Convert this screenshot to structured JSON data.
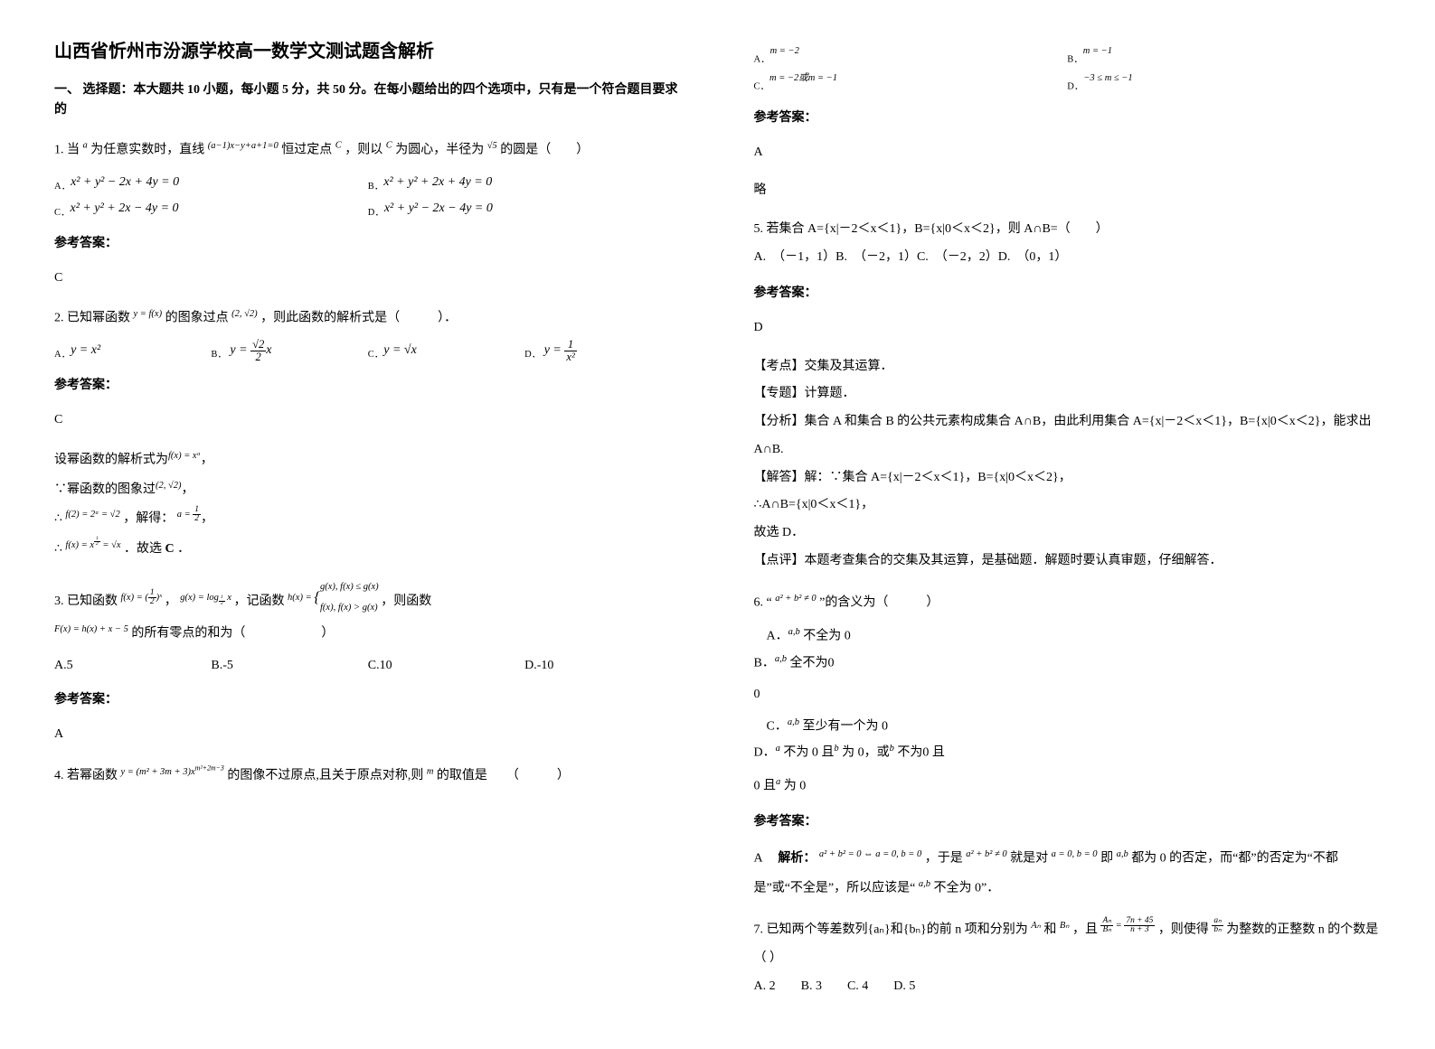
{
  "title": "山西省忻州市汾源学校高一数学文测试题含解析",
  "section1_intro": "一、 选择题：本大题共 10 小题，每小题 5 分，共 50 分。在每小题给出的四个选项中，只有是一个符合题目要求的",
  "q1": {
    "stem_a": "1. 当",
    "stem_b": "为任意实数时，直线",
    "stem_c": "恒过定点",
    "stem_d": "，则以",
    "stem_e": "为圆心，半径为",
    "stem_f": "的圆是（　　）",
    "var_a": "a",
    "line_expr": "(a−1)x−y+a+1=0",
    "point_c": "C",
    "radius": "√5",
    "optA": "x² + y² − 2x + 4y = 0",
    "optB": "x² + y² + 2x + 4y = 0",
    "optC": "x² + y² + 2x − 4y = 0",
    "optD": "x² + y² − 2x − 4y = 0",
    "labelA": "A．",
    "labelB": "B．",
    "labelC": "C．",
    "labelD": "D．",
    "ans_label": "参考答案：",
    "ans": "C"
  },
  "q2": {
    "stem_a": "2. 已知幂函数",
    "stem_b": "的图象过点",
    "stem_c": "，则此函数的解析式是（　　　）．",
    "fx": "y = f(x)",
    "point": "(2, √2)",
    "labelA": "A．",
    "labelB": "B．",
    "labelC": "C．",
    "labelD": "D．",
    "optA": "y = x²",
    "optB_pre": "y = ",
    "optB_num": "√2",
    "optB_den": "2",
    "optB_post": "x",
    "optC": "y = √x",
    "optD_pre": "y = ",
    "optD_num": "1",
    "optD_den": "x²",
    "ans_label": "参考答案：",
    "ans": "C",
    "sol1": "设幂函数的解析式为",
    "sol1_f": "f(x) = xᵅ",
    "sol2": "∵幂函数的图象过",
    "sol2_pt": "(2, √2)",
    "sol3a": "∴",
    "sol3b": "f(2) = 2ᵅ = √2",
    "sol3c": "，解得：",
    "sol3_num": "1",
    "sol3_den": "2",
    "sol3_pre": "a = ",
    "sol4a": "∴",
    "sol4b": "f(x) = x",
    "sol4_exp_num": "1",
    "sol4_exp_den": "2",
    "sol4c": " = √x",
    "sol4d": "．故选",
    "sol4e": "C",
    "sol4f": "．"
  },
  "q3": {
    "stem_a": "3. 已知函数",
    "f_expr_pre": "f(x) = (",
    "f_expr_num": "1",
    "f_expr_den": "2",
    "f_expr_post": ")ˣ",
    "comma1": "，",
    "g_expr": "g(x) = log",
    "g_base_num": "1",
    "g_base_den": "2",
    "g_arg": " x",
    "stem_b": "，记函数",
    "h_pre": "h(x) = ",
    "h_case1": "g(x), f(x) ≤ g(x)",
    "h_case2": "f(x), f(x) > g(x)",
    "stem_c": "，则函数",
    "F_expr": "F(x) = h(x) + x − 5",
    "stem_d": "的所有零点的和为（　　　　　　）",
    "optA": "A.5",
    "optB": "B.-5",
    "optC": "C.10",
    "optD": "D.-10",
    "ans_label": "参考答案：",
    "ans": "A"
  },
  "q4": {
    "stem_a": "4. 若幂函数",
    "y_expr": "y = (m² + 3m + 3)x",
    "exp_expr": "m²+2m−3",
    "stem_b": "的图像不过原点,且关于原点对称,则",
    "var_m": "m",
    "stem_c": "的取值是　　（　　　）",
    "labelA": "A．",
    "labelB": "B．",
    "labelC": "C．",
    "labelD": "D．",
    "optA": "m = −2",
    "optB": "m = −1",
    "optC": "m = −2或m = −1",
    "optD": "−3 ≤ m ≤ −1",
    "ans_label": "参考答案：",
    "ans": "A",
    "ans_note": "略"
  },
  "q5": {
    "stem": "5. 若集合 A={x|－2＜x＜1}，B={x|0＜x＜2}，则 A∩B=（　　）",
    "opts": "A.　（－1，1）B.　（－2，1）C.　（－2，2）D.　（0，1）",
    "ans_label": "参考答案：",
    "ans": "D",
    "kd_label": "【考点】",
    "kd": "交集及其运算．",
    "zt_label": "【专题】",
    "zt": "计算题．",
    "fx_label": "【分析】",
    "fx": "集合 A 和集合 B 的公共元素构成集合 A∩B，由此利用集合 A={x|－2＜x＜1}，B={x|0＜x＜2}，能求出 A∩B.",
    "jd_label": "【解答】",
    "jd1": "解：∵集合 A={x|－2＜x＜1}，B={x|0＜x＜2}，",
    "jd2": "∴A∩B={x|0＜x＜1}，",
    "jd3": "故选 D．",
    "dp_label": "【点评】",
    "dp": "本题考查集合的交集及其运算，是基础题．解题时要认真审题，仔细解答．"
  },
  "q6": {
    "stem_a": "6. “",
    "expr": "a² + b² ≠ 0",
    "stem_b": "”的含义为（　　　）",
    "labelA": "A．",
    "labelB": "B．",
    "labelC": "C．",
    "labelD": "D．",
    "optA_pre": "",
    "optA_ab": "a,b",
    "optA_post": " 不全为 0",
    "optB_ab": "a,b",
    "optB_post": " 全不为0",
    "optC_ab": "a,b",
    "optC_post": " 至少有一个为 0",
    "optD_a": "a",
    "optD_mid1": " 不为 0 且",
    "optD_b": "b",
    "optD_mid2": " 为 0，或",
    "optD_b2": "b",
    "optD_mid3": " 不为0 且",
    "optD_a2": "a",
    "optD_end": " 为 0",
    "ans_label": "参考答案：",
    "ans": "A",
    "sol_pre": "　解析：",
    "sol_e1": "a² + b² = 0 ⇔ a = 0, b = 0",
    "sol_mid1": "，于是",
    "sol_e2": "a² + b² ≠ 0",
    "sol_mid2": "就是对",
    "sol_e3": "a = 0, b = 0",
    "sol_mid3": "即",
    "sol_e4": "a,b",
    "sol_mid4": " 都为 0 的否定，而“都”的否定为“不都是”或“不全是”，所以应该是“",
    "sol_e5": "a,b",
    "sol_end": " 不全为 0”．"
  },
  "q7": {
    "stem_a": "7. 已知两个等差数列{aₙ}和{bₙ}的前 n 项和分别为",
    "An": "Aₙ",
    "and": "和",
    "Bn": "Bₙ",
    "stem_b": "，且",
    "frac_l_num": "Aₙ",
    "frac_l_den": "Bₙ",
    "eq": " = ",
    "frac_r_num": "7n + 45",
    "frac_r_den": "n + 3",
    "stem_c": "，则使得",
    "frac2_num": "aₙ",
    "frac2_den": "bₙ",
    "stem_d": "为整数的正整数 n 的个数是（ ）",
    "opts": "A. 2　　B. 3　　C. 4　　D. 5"
  }
}
